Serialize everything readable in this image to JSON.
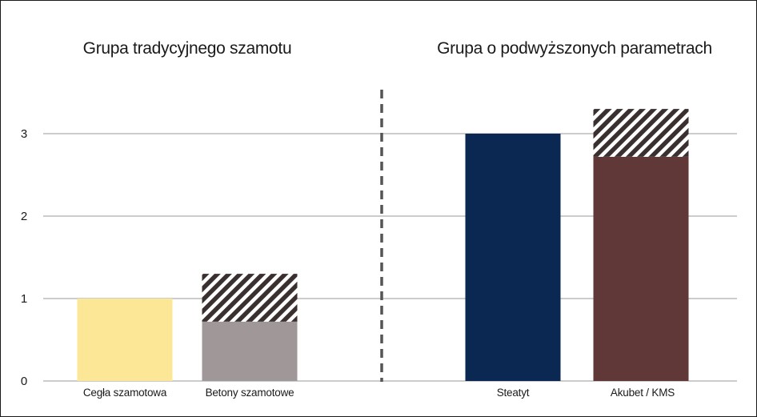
{
  "chart_data": {
    "type": "bar",
    "groups": [
      {
        "title": "Grupa tradycyjnego szamotu",
        "categories": [
          "Cegła szamotowa",
          "Betony szamotowe"
        ]
      },
      {
        "title": "Grupa o podwyższonych parametrach",
        "categories": [
          "Steatyt",
          "Akubet / KMS"
        ]
      }
    ],
    "categories": [
      "Cegła szamotowa",
      "Betony szamotowe",
      "Steatyt",
      "Akubet / KMS"
    ],
    "series": [
      {
        "values": [
          1.0,
          0.72,
          3.0,
          2.72
        ],
        "colors": [
          "#fce796",
          "#a09898",
          "#0b2852",
          "#613838"
        ]
      },
      {
        "values": [
          0,
          0.58,
          0,
          0.58
        ],
        "pattern": "diagonal-hatch",
        "pattern_colors": [
          "#3a3030",
          "#ffffff"
        ]
      }
    ],
    "ylim": [
      0,
      3.5
    ],
    "yticks": [
      "0",
      "1",
      "2",
      "3"
    ],
    "grid": true,
    "group_separator": "dashed-vertical-line",
    "xlabel": "",
    "ylabel": "",
    "title": ""
  }
}
